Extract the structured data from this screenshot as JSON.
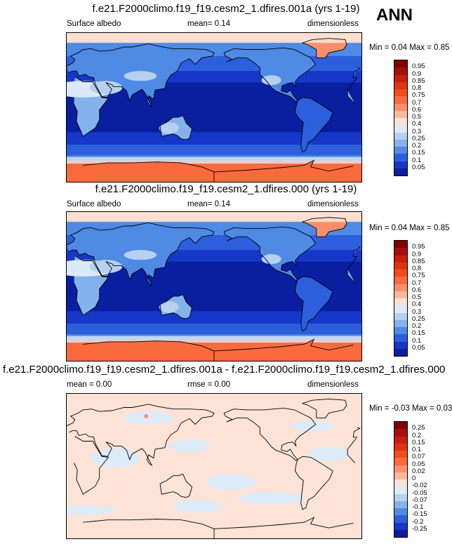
{
  "season_label": "ANN",
  "panels": [
    {
      "title": "f.e21.F2000climo.f19_f19.cesm2_1.dfires.001a (yrs 1-19)",
      "left_label": "Surface albedo",
      "center_label": "mean=  0.14",
      "right_label": "dimensionless",
      "minmax": "Min =  0.04 Max =  0.85",
      "style": "abs",
      "colorbar_labels": [
        "0.95",
        "0.9",
        "0.85",
        "0.8",
        "0.75",
        "0.7",
        "0.6",
        "0.5",
        "0.4",
        "0.3",
        "0.25",
        "0.2",
        "0.15",
        "0.1",
        "0.05"
      ]
    },
    {
      "title": "f.e21.F2000climo.f19_f19.cesm2_1.dfires.000 (yrs 1-19)",
      "left_label": "Surface albedo",
      "center_label": "mean=  0.14",
      "right_label": "dimensionless",
      "minmax": "Min =  0.04 Max =  0.85",
      "style": "abs",
      "colorbar_labels": [
        "0.95",
        "0.9",
        "0.85",
        "0.8",
        "0.75",
        "0.7",
        "0.6",
        "0.5",
        "0.4",
        "0.3",
        "0.25",
        "0.2",
        "0.15",
        "0.1",
        "0.05"
      ]
    },
    {
      "title": "f.e21.F2000climo.f19_f19.cesm2_1.dfires.001a - f.e21.F2000climo.f19_f19.cesm2_1.dfires.000",
      "left_label": "mean =  0.00",
      "center_label": "rmse =  0.00",
      "right_label": "dimensionless",
      "minmax": "Min = -0.03 Max =  0.03",
      "style": "diff",
      "colorbar_labels": [
        "0.25",
        "0.2",
        "0.15",
        "0.1",
        "0.07",
        "0.05",
        "0.02",
        "0",
        "-0.02",
        "-0.05",
        "-0.07",
        "-0.1",
        "-0.15",
        "-0.2",
        "-0.25"
      ]
    }
  ],
  "colors": {
    "abs_scale": [
      "#7f0000",
      "#a50f0f",
      "#c81e0f",
      "#e0330f",
      "#f04c1e",
      "#fa6a3c",
      "#fc8f6b",
      "#fcb89c",
      "#fde0d2",
      "#dbe9f8",
      "#b5d0f0",
      "#84b2ea",
      "#4f8ae4",
      "#2d5fdc",
      "#1637c8",
      "#0a1ea0"
    ],
    "diff_scale": [
      "#7f0000",
      "#a50f0f",
      "#c81e0f",
      "#e0330f",
      "#f04c1e",
      "#fa6a3c",
      "#fc8f6b",
      "#fcb89c",
      "#fde3d5",
      "#ddeaf8",
      "#b7d2f0",
      "#86b4ea",
      "#528ce4",
      "#2e60dc",
      "#1737c8",
      "#0a1ea0"
    ]
  }
}
